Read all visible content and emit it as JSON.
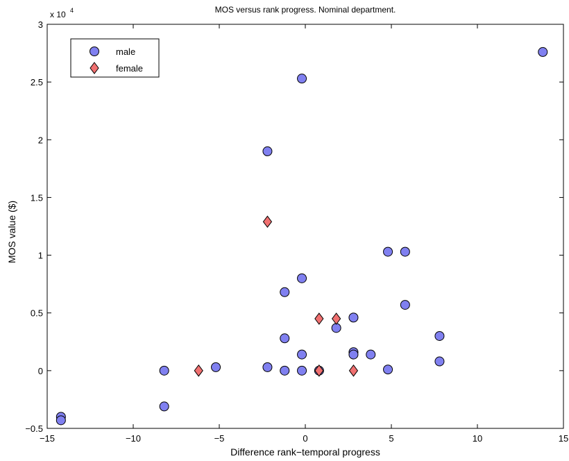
{
  "chart_data": {
    "type": "scatter",
    "title": "MOS versus rank progress. Nominal department.",
    "xlabel": "Difference rank−temporal progress",
    "ylabel": "MOS value ($)",
    "y_multiplier_label": "x 10",
    "y_multiplier_exponent": "4",
    "xlim": [
      -15,
      15
    ],
    "ylim": [
      -0.5,
      3
    ],
    "x_ticks": [
      -15,
      -10,
      -5,
      0,
      5,
      10,
      15
    ],
    "x_tick_labels": [
      "−15",
      "−10",
      "−5",
      "0",
      "5",
      "10",
      "15"
    ],
    "y_ticks": [
      -0.5,
      0,
      0.5,
      1,
      1.5,
      2,
      2.5,
      3
    ],
    "y_tick_labels": [
      "−0.5",
      "0",
      "0.5",
      "1",
      "1.5",
      "2",
      "2.5",
      "3"
    ],
    "grid": false,
    "legend_position": "top-left",
    "series": [
      {
        "name": "male",
        "marker": "circle",
        "color": "#8080f0",
        "points": [
          [
            -14.2,
            -0.4
          ],
          [
            -14.2,
            -0.43
          ],
          [
            -8.2,
            0.0
          ],
          [
            -8.2,
            -0.31
          ],
          [
            -5.2,
            0.03
          ],
          [
            -2.2,
            1.9
          ],
          [
            -2.2,
            0.03
          ],
          [
            -1.2,
            0.68
          ],
          [
            -1.2,
            0.28
          ],
          [
            -1.2,
            0.0
          ],
          [
            -0.2,
            2.53
          ],
          [
            -0.2,
            0.8
          ],
          [
            -0.2,
            0.14
          ],
          [
            -0.2,
            0.0
          ],
          [
            0.8,
            0.0
          ],
          [
            1.8,
            0.37
          ],
          [
            2.8,
            0.46
          ],
          [
            2.8,
            0.16
          ],
          [
            2.8,
            0.14
          ],
          [
            3.8,
            0.14
          ],
          [
            4.8,
            1.03
          ],
          [
            4.8,
            0.01
          ],
          [
            5.8,
            1.03
          ],
          [
            5.8,
            0.57
          ],
          [
            7.8,
            0.3
          ],
          [
            7.8,
            0.08
          ],
          [
            13.8,
            2.76
          ]
        ]
      },
      {
        "name": "female",
        "marker": "diamond",
        "color": "#f07070",
        "points": [
          [
            -6.2,
            0.0
          ],
          [
            -2.2,
            1.29
          ],
          [
            0.8,
            0.45
          ],
          [
            0.8,
            0.0
          ],
          [
            1.8,
            0.45
          ],
          [
            2.8,
            0.0
          ]
        ]
      }
    ]
  }
}
